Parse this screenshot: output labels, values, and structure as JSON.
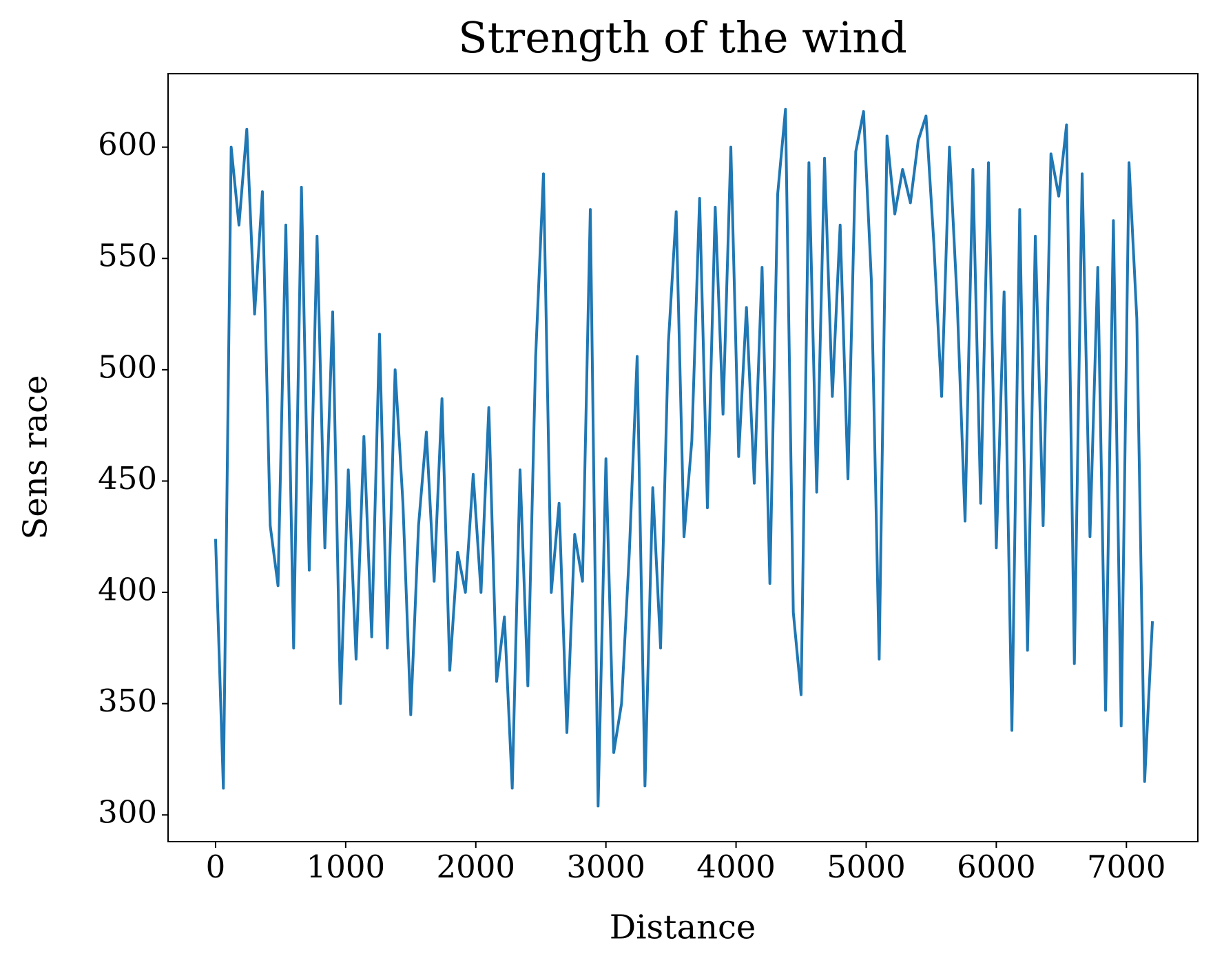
{
  "chart_data": {
    "type": "line",
    "title": "Strength of the wind",
    "xlabel": "Distance",
    "ylabel": "Sens race",
    "x": [
      0,
      60,
      120,
      180,
      240,
      300,
      360,
      420,
      480,
      540,
      600,
      660,
      720,
      780,
      840,
      900,
      960,
      1020,
      1080,
      1140,
      1200,
      1260,
      1320,
      1380,
      1440,
      1500,
      1560,
      1620,
      1680,
      1740,
      1800,
      1860,
      1920,
      1980,
      2040,
      2100,
      2160,
      2220,
      2280,
      2340,
      2400,
      2460,
      2520,
      2580,
      2640,
      2700,
      2760,
      2820,
      2880,
      2940,
      3000,
      3060,
      3120,
      3180,
      3240,
      3300,
      3360,
      3420,
      3480,
      3540,
      3600,
      3660,
      3720,
      3780,
      3840,
      3900,
      3960,
      4020,
      4080,
      4140,
      4200,
      4260,
      4320,
      4380,
      4440,
      4500,
      4560,
      4620,
      4680,
      4740,
      4800,
      4860,
      4920,
      4980,
      5040,
      5100,
      5160,
      5220,
      5280,
      5340,
      5400,
      5460,
      5520,
      5580,
      5640,
      5700,
      5760,
      5820,
      5880,
      5940,
      6000,
      6060,
      6120,
      6180,
      6240,
      6300,
      6360,
      6420,
      6480,
      6540,
      6600,
      6660,
      6720,
      6780,
      6840,
      6900,
      6960,
      7020,
      7080,
      7140,
      7200
    ],
    "series": [
      {
        "color": "#1f77b4",
        "values": [
          424,
          312,
          600,
          565,
          608,
          525,
          580,
          430,
          403,
          565,
          375,
          582,
          410,
          560,
          420,
          526,
          350,
          455,
          370,
          470,
          380,
          516,
          375,
          500,
          440,
          345,
          430,
          472,
          405,
          487,
          365,
          418,
          400,
          453,
          400,
          483,
          360,
          389,
          312,
          455,
          358,
          506,
          588,
          400,
          440,
          337,
          426,
          405,
          572,
          304,
          460,
          328,
          350,
          418,
          506,
          313,
          447,
          375,
          512,
          571,
          425,
          468,
          577,
          438,
          573,
          480,
          600,
          461,
          528,
          449,
          546,
          404,
          579,
          617,
          391,
          354,
          593,
          445,
          595,
          488,
          565,
          451,
          598,
          616,
          540,
          370,
          605,
          570,
          590,
          575,
          603,
          614,
          557,
          488,
          600,
          530,
          432,
          590,
          440,
          593,
          420,
          535,
          338,
          572,
          374,
          560,
          430,
          597,
          578,
          610,
          368,
          588,
          425,
          546,
          347,
          567,
          340,
          593,
          523,
          315,
          387
        ]
      }
    ],
    "xlim": [
      -365,
      7549
    ],
    "ylim": [
      288,
      633
    ],
    "xticks": [
      0,
      1000,
      2000,
      3000,
      4000,
      5000,
      6000,
      7000
    ],
    "yticks": [
      300,
      350,
      400,
      450,
      500,
      550,
      600
    ]
  }
}
